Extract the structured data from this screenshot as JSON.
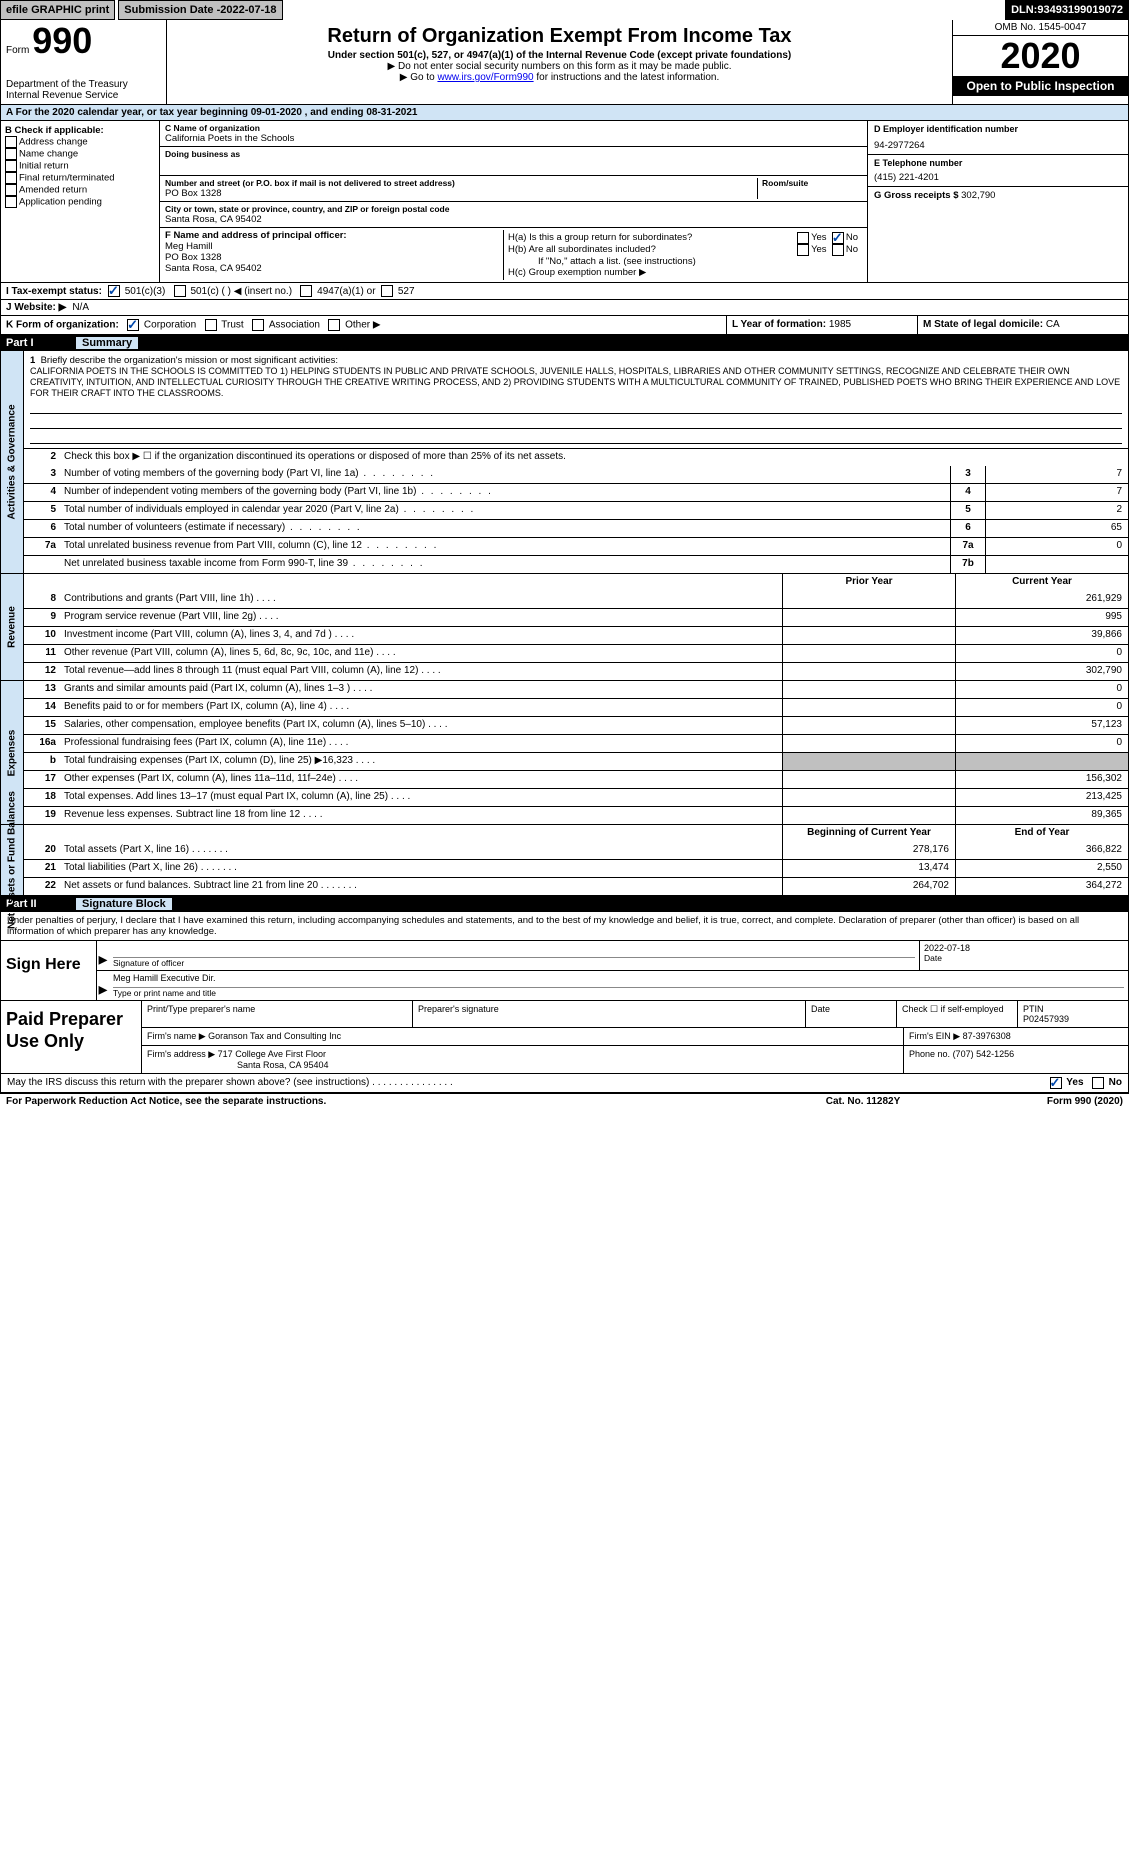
{
  "topbar": {
    "efile": "efile GRAPHIC print",
    "submission_label": "Submission Date - ",
    "submission_date": "2022-07-18",
    "dln_label": "DLN: ",
    "dln": "93493199019072"
  },
  "header": {
    "form_label": "Form",
    "form_number": "990",
    "title": "Return of Organization Exempt From Income Tax",
    "subtitle": "Under section 501(c), 527, or 4947(a)(1) of the Internal Revenue Code (except private foundations)",
    "instr1": "▶ Do not enter social security numbers on this form as it may be made public.",
    "instr2_pre": "▶ Go to ",
    "instr2_link": "www.irs.gov/Form990",
    "instr2_post": " for instructions and the latest information.",
    "omb": "OMB No. 1545-0047",
    "year": "2020",
    "open_public": "Open to Public Inspection",
    "dept": "Department of the Treasury",
    "irs": "Internal Revenue Service"
  },
  "row_a": "A   For the 2020 calendar year, or tax year beginning 09-01-2020   , and ending 08-31-2021",
  "col_b": {
    "header": "B Check if applicable:",
    "items": [
      "Address change",
      "Name change",
      "Initial return",
      "Final return/terminated",
      "Amended return",
      "Application pending"
    ]
  },
  "col_c": {
    "name_label": "C Name of organization",
    "name": "California Poets in the Schools",
    "dba_label": "Doing business as",
    "dba": "",
    "addr_label": "Number and street (or P.O. box if mail is not delivered to street address)",
    "room_label": "Room/suite",
    "addr": "PO Box 1328",
    "city_label": "City or town, state or province, country, and ZIP or foreign postal code",
    "city": "Santa Rosa, CA  95402",
    "f_label": "F Name and address of principal officer:",
    "f_name": "Meg Hamill",
    "f_addr1": "PO Box 1328",
    "f_addr2": "Santa Rosa, CA  95402"
  },
  "col_d": {
    "ein_label": "D Employer identification number",
    "ein": "94-2977264",
    "phone_label": "E Telephone number",
    "phone": "(415) 221-4201",
    "gross_label": "G Gross receipts $",
    "gross": "302,790"
  },
  "col_h": {
    "ha": "H(a)  Is this a group return for subordinates?",
    "hb": "H(b)  Are all subordinates included?",
    "hb_note": "If \"No,\" attach a list. (see instructions)",
    "hc": "H(c)  Group exemption number ▶",
    "yes": "Yes",
    "no": "No"
  },
  "row_i": {
    "label": "I   Tax-exempt status:",
    "opt1": "501(c)(3)",
    "opt2": "501(c) (  ) ◀ (insert no.)",
    "opt3": "4947(a)(1) or",
    "opt4": "527"
  },
  "row_j": {
    "label": "J   Website: ▶",
    "value": "N/A"
  },
  "row_k": {
    "label": "K Form of organization:",
    "opts": [
      "Corporation",
      "Trust",
      "Association",
      "Other ▶"
    ],
    "l_label": "L Year of formation:",
    "l_val": "1985",
    "m_label": "M State of legal domicile:",
    "m_val": "CA"
  },
  "part1": {
    "num": "Part I",
    "title": "Summary"
  },
  "mission": {
    "num": "1",
    "label": "Briefly describe the organization's mission or most significant activities:",
    "text": "CALIFORNIA POETS IN THE SCHOOLS IS COMMITTED TO 1) HELPING STUDENTS IN PUBLIC AND PRIVATE SCHOOLS, JUVENILE HALLS, HOSPITALS, LIBRARIES AND OTHER COMMUNITY SETTINGS, RECOGNIZE AND CELEBRATE THEIR OWN CREATIVITY, INTUITION, AND INTELLECTUAL CURIOSITY THROUGH THE CREATIVE WRITING PROCESS, AND 2) PROVIDING STUDENTS WITH A MULTICULTURAL COMMUNITY OF TRAINED, PUBLISHED POETS WHO BRING THEIR EXPERIENCE AND LOVE FOR THEIR CRAFT INTO THE CLASSROOMS."
  },
  "line2": {
    "num": "2",
    "desc": "Check this box ▶ ☐  if the organization discontinued its operations or disposed of more than 25% of its net assets."
  },
  "gov_lines": [
    {
      "num": "3",
      "desc": "Number of voting members of the governing body (Part VI, line 1a)",
      "box": "3",
      "val": "7"
    },
    {
      "num": "4",
      "desc": "Number of independent voting members of the governing body (Part VI, line 1b)",
      "box": "4",
      "val": "7"
    },
    {
      "num": "5",
      "desc": "Total number of individuals employed in calendar year 2020 (Part V, line 2a)",
      "box": "5",
      "val": "2"
    },
    {
      "num": "6",
      "desc": "Total number of volunteers (estimate if necessary)",
      "box": "6",
      "val": "65"
    },
    {
      "num": "7a",
      "desc": "Total unrelated business revenue from Part VIII, column (C), line 12",
      "box": "7a",
      "val": "0"
    },
    {
      "num": "",
      "desc": "Net unrelated business taxable income from Form 990-T, line 39",
      "box": "7b",
      "val": ""
    }
  ],
  "vtabs": {
    "gov": "Activities & Governance",
    "rev": "Revenue",
    "exp": "Expenses",
    "net": "Net Assets or Fund Balances"
  },
  "col_headers": {
    "prior": "Prior Year",
    "current": "Current Year",
    "begin": "Beginning of Current Year",
    "end": "End of Year"
  },
  "rev_lines": [
    {
      "num": "8",
      "desc": "Contributions and grants (Part VIII, line 1h)",
      "prior": "",
      "curr": "261,929"
    },
    {
      "num": "9",
      "desc": "Program service revenue (Part VIII, line 2g)",
      "prior": "",
      "curr": "995"
    },
    {
      "num": "10",
      "desc": "Investment income (Part VIII, column (A), lines 3, 4, and 7d )",
      "prior": "",
      "curr": "39,866"
    },
    {
      "num": "11",
      "desc": "Other revenue (Part VIII, column (A), lines 5, 6d, 8c, 9c, 10c, and 11e)",
      "prior": "",
      "curr": "0"
    },
    {
      "num": "12",
      "desc": "Total revenue—add lines 8 through 11 (must equal Part VIII, column (A), line 12)",
      "prior": "",
      "curr": "302,790"
    }
  ],
  "exp_lines": [
    {
      "num": "13",
      "desc": "Grants and similar amounts paid (Part IX, column (A), lines 1–3 )",
      "prior": "",
      "curr": "0"
    },
    {
      "num": "14",
      "desc": "Benefits paid to or for members (Part IX, column (A), line 4)",
      "prior": "",
      "curr": "0"
    },
    {
      "num": "15",
      "desc": "Salaries, other compensation, employee benefits (Part IX, column (A), lines 5–10)",
      "prior": "",
      "curr": "57,123"
    },
    {
      "num": "16a",
      "desc": "Professional fundraising fees (Part IX, column (A), line 11e)",
      "prior": "",
      "curr": "0"
    },
    {
      "num": "b",
      "desc": "Total fundraising expenses (Part IX, column (D), line 25) ▶16,323",
      "prior": "grey",
      "curr": "grey"
    },
    {
      "num": "17",
      "desc": "Other expenses (Part IX, column (A), lines 11a–11d, 11f–24e)",
      "prior": "",
      "curr": "156,302"
    },
    {
      "num": "18",
      "desc": "Total expenses. Add lines 13–17 (must equal Part IX, column (A), line 25)",
      "prior": "",
      "curr": "213,425"
    },
    {
      "num": "19",
      "desc": "Revenue less expenses. Subtract line 18 from line 12",
      "prior": "",
      "curr": "89,365"
    }
  ],
  "net_lines": [
    {
      "num": "20",
      "desc": "Total assets (Part X, line 16)",
      "prior": "278,176",
      "curr": "366,822"
    },
    {
      "num": "21",
      "desc": "Total liabilities (Part X, line 26)",
      "prior": "13,474",
      "curr": "2,550"
    },
    {
      "num": "22",
      "desc": "Net assets or fund balances. Subtract line 21 from line 20",
      "prior": "264,702",
      "curr": "364,272"
    }
  ],
  "part2": {
    "num": "Part II",
    "title": "Signature Block"
  },
  "sig_intro": "Under penalties of perjury, I declare that I have examined this return, including accompanying schedules and statements, and to the best of my knowledge and belief, it is true, correct, and complete. Declaration of preparer (other than officer) is based on all information of which preparer has any knowledge.",
  "sign": {
    "label": "Sign Here",
    "sig_of_officer": "Signature of officer",
    "date_label": "Date",
    "date_val": "2022-07-18",
    "name_title": "Meg Hamill  Executive Dir.",
    "type_label": "Type or print name and title"
  },
  "prep": {
    "label": "Paid Preparer Use Only",
    "print_label": "Print/Type preparer's name",
    "sig_label": "Preparer's signature",
    "date_label": "Date",
    "check_label": "Check ☐ if self-employed",
    "ptin_label": "PTIN",
    "ptin": "P02457939",
    "firm_name_label": "Firm's name    ▶",
    "firm_name": "Goranson Tax and Consulting Inc",
    "firm_ein_label": "Firm's EIN ▶",
    "firm_ein": "87-3976308",
    "firm_addr_label": "Firm's address ▶",
    "firm_addr1": "717 College Ave First Floor",
    "firm_addr2": "Santa Rosa, CA  95404",
    "phone_label": "Phone no.",
    "phone": "(707) 542-1256"
  },
  "footer": {
    "discuss": "May the IRS discuss this return with the preparer shown above? (see instructions)",
    "yes": "Yes",
    "no": "No",
    "paperwork": "For Paperwork Reduction Act Notice, see the separate instructions.",
    "cat": "Cat. No. 11282Y",
    "form": "Form 990 (2020)"
  }
}
